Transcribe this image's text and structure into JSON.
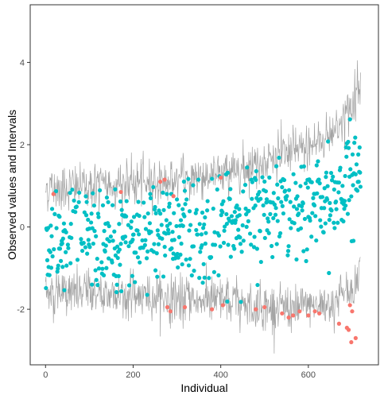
{
  "chart_data": {
    "type": "scatter",
    "title": "",
    "xlabel": "Individual",
    "ylabel": "Observed values and Intervals",
    "xlim": [
      -35,
      760
    ],
    "ylim": [
      -3.35,
      5.4
    ],
    "x_ticks": [
      0,
      200,
      400,
      600
    ],
    "y_ticks": [
      -2,
      0,
      2,
      4
    ],
    "x_tick_labels": [
      "0",
      "200",
      "400",
      "600"
    ],
    "y_tick_labels": [
      "-2",
      "0",
      "2",
      "4"
    ],
    "grid": false,
    "legend": "none",
    "n_individuals": 720,
    "interval_bounds": {
      "x": [
        0,
        100,
        200,
        300,
        400,
        500,
        600,
        650,
        700,
        720
      ],
      "upper": [
        0.95,
        1.0,
        1.05,
        1.15,
        1.3,
        1.6,
        1.95,
        2.25,
        2.9,
        3.8
      ],
      "lower": [
        -1.6,
        -1.6,
        -1.65,
        -1.75,
        -1.8,
        -1.95,
        -1.95,
        -1.85,
        -1.5,
        -1.0
      ]
    },
    "fitted_trend": {
      "x": [
        0,
        100,
        200,
        300,
        400,
        500,
        600,
        650,
        700,
        720
      ],
      "y": [
        -0.35,
        -0.3,
        -0.2,
        -0.15,
        -0.05,
        0.2,
        0.5,
        0.65,
        1.0,
        1.6
      ]
    },
    "series": [
      {
        "name": "",
        "color": "#00BFC4",
        "description_points": "inside interval"
      },
      {
        "name": "",
        "color": "#F8766D",
        "description_points": "outside interval"
      }
    ],
    "outside_points": {
      "x": [
        18,
        172,
        262,
        272,
        278,
        285,
        292,
        318,
        380,
        400,
        405,
        480,
        500,
        540,
        555,
        565,
        580,
        600,
        615,
        625,
        670,
        688,
        692,
        695,
        698,
        700,
        708
      ],
      "y": [
        0.8,
        0.85,
        1.1,
        1.15,
        -1.95,
        -2.05,
        0.75,
        -1.95,
        -2.0,
        1.2,
        -1.9,
        -2.0,
        -1.95,
        -2.1,
        -2.2,
        -2.15,
        -2.05,
        -2.15,
        -2.05,
        -2.1,
        -2.35,
        -2.45,
        -2.5,
        -1.9,
        -2.8,
        -2.05,
        -2.7
      ]
    },
    "interval_color": "#A3A3A3",
    "panel_border_color": "#333333"
  }
}
